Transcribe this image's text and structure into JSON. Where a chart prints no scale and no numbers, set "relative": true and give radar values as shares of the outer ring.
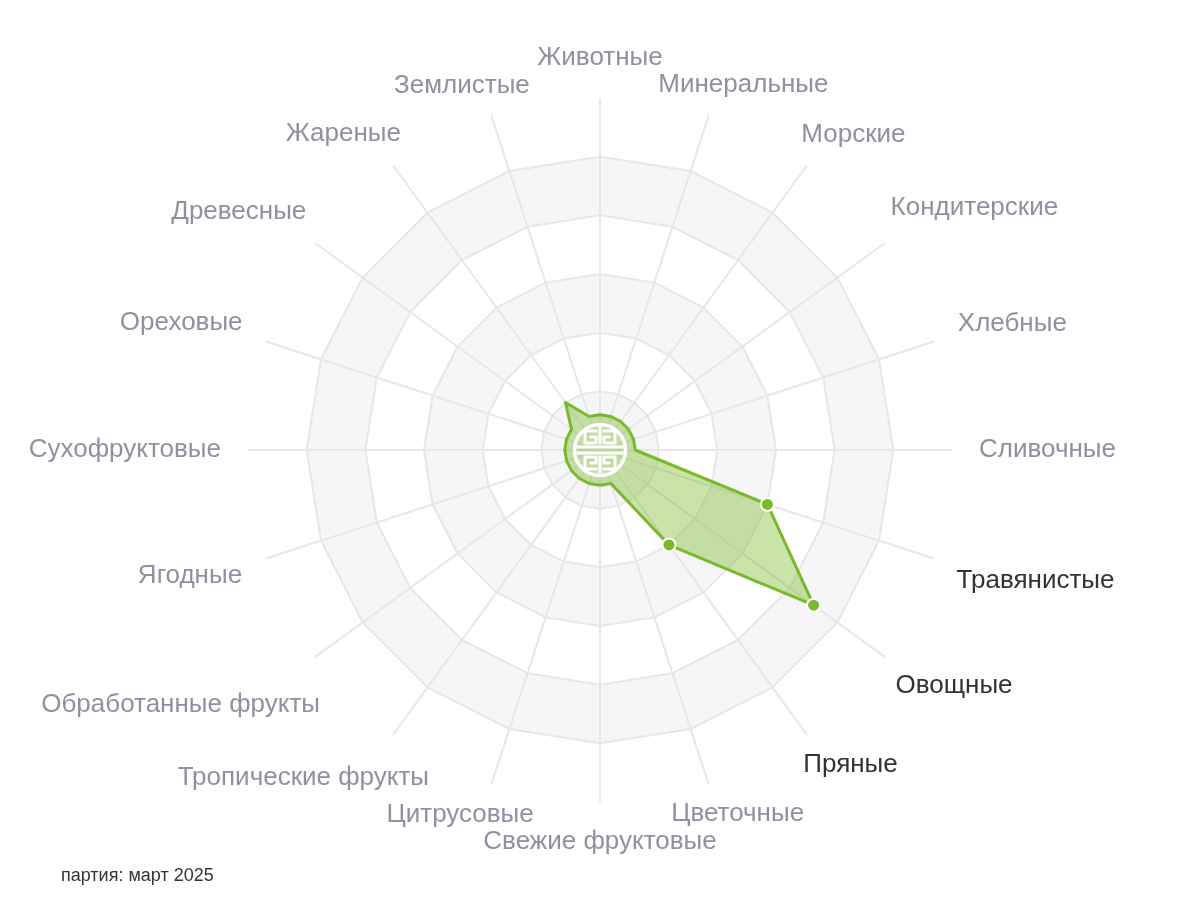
{
  "chart_data": {
    "type": "radar",
    "categories": [
      "Животные",
      "Минеральные",
      "Морские",
      "Кондитерские",
      "Хлебные",
      "Сливочные",
      "Травянистые",
      "Овощные",
      "Пряные",
      "Цветочные",
      "Свежие фруктовые",
      "Цитрусовые",
      "Тропические фрукты",
      "Обработанные фрукты",
      "Ягодные",
      "Сухофруктовые",
      "Ореховые",
      "Древесные",
      "Жареные",
      "Землистые"
    ],
    "series": [
      {
        "color": "#7ab929",
        "values": [
          0.12,
          0.12,
          0.12,
          0.12,
          0.12,
          0.12,
          0.6,
          0.9,
          0.4,
          0.12,
          0.12,
          0.12,
          0.12,
          0.12,
          0.12,
          0.12,
          0.12,
          0.12,
          0.2,
          0.12
        ]
      }
    ],
    "relative": true,
    "grid": true,
    "marker": "circle",
    "annotations": [
      "партия: март 2025"
    ]
  }
}
